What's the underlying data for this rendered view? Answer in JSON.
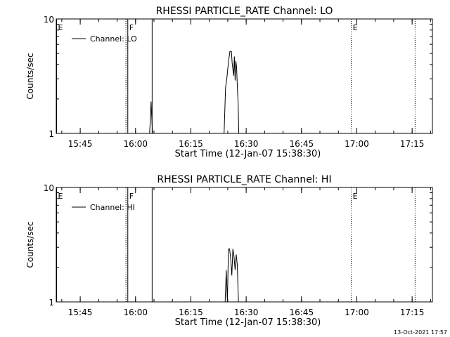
{
  "footer": {
    "timestamp": "13-Oct-2021 17:57"
  },
  "chart_data": [
    {
      "type": "line",
      "title": "RHESSI PARTICLE_RATE Channel: LO",
      "xlabel": "Start Time (12-Jan-07 15:38:30)",
      "ylabel": "Counts/sec",
      "ylog": true,
      "xlim_min": [
        0,
        102
      ],
      "ylim": [
        1,
        10
      ],
      "xticks_min": [
        6.5,
        21.5,
        36.5,
        51.5,
        66.5,
        81.5,
        96.5
      ],
      "xtick_labels": [
        "15:45",
        "16:00",
        "16:15",
        "16:30",
        "16:45",
        "17:00",
        "17:15"
      ],
      "yticks": [
        1,
        10
      ],
      "ytick_labels": [
        "1",
        "10"
      ],
      "legend": {
        "entries": [
          "Channel: LO"
        ],
        "position": "top-left"
      },
      "event_markers": [
        {
          "label": "E",
          "min": 0.1,
          "style": "solid"
        },
        {
          "label": "",
          "min": 18.9,
          "style": "dotted"
        },
        {
          "label": "F",
          "min": 19.4,
          "style": "solid"
        },
        {
          "label": "",
          "min": 26.0,
          "style": "solid"
        },
        {
          "label": "E",
          "min": 80.0,
          "style": "dotted"
        },
        {
          "label": "",
          "min": 97.3,
          "style": "dotted"
        }
      ],
      "series": [
        {
          "name": "Channel: LO",
          "x_min": [
            25.3,
            25.5,
            25.7,
            25.9,
            26.1,
            26.3,
            45.5,
            45.9,
            46.3,
            46.7,
            47.1,
            47.5,
            47.7,
            48.1,
            48.3,
            48.5,
            48.7,
            48.9,
            49.1,
            49.3,
            49.5,
            49.7,
            49.9,
            50.1,
            50.3,
            50.5
          ],
          "y": [
            1.0,
            1.3,
            1.9,
            1.4,
            1.0,
            1.0,
            1.0,
            2.5,
            3.1,
            4.2,
            5.2,
            5.2,
            4.1,
            3.2,
            4.7,
            2.9,
            4.3,
            3.8,
            2.6,
            1.9,
            1.0,
            1.0,
            1.0,
            1.0,
            1.0,
            1.0
          ]
        }
      ]
    },
    {
      "type": "line",
      "title": "RHESSI PARTICLE_RATE Channel: HI",
      "xlabel": "Start Time (12-Jan-07 15:38:30)",
      "ylabel": "Counts/sec",
      "ylog": true,
      "xlim_min": [
        0,
        102
      ],
      "ylim": [
        1,
        10
      ],
      "xticks_min": [
        6.5,
        21.5,
        36.5,
        51.5,
        66.5,
        81.5,
        96.5
      ],
      "xtick_labels": [
        "15:45",
        "16:00",
        "16:15",
        "16:30",
        "16:45",
        "17:00",
        "17:15"
      ],
      "yticks": [
        1,
        10
      ],
      "ytick_labels": [
        "1",
        "10"
      ],
      "legend": {
        "entries": [
          "Channel: HI"
        ],
        "position": "top-left"
      },
      "event_markers": [
        {
          "label": "E",
          "min": 0.1,
          "style": "solid"
        },
        {
          "label": "",
          "min": 18.9,
          "style": "dotted"
        },
        {
          "label": "F",
          "min": 19.4,
          "style": "solid"
        },
        {
          "label": "",
          "min": 26.0,
          "style": "solid"
        },
        {
          "label": "E",
          "min": 80.0,
          "style": "dotted"
        },
        {
          "label": "",
          "min": 97.3,
          "style": "dotted"
        }
      ],
      "series": [
        {
          "name": "Channel: HI",
          "x_min": [
            45.5,
            45.8,
            46.1,
            46.4,
            46.7,
            47.0,
            47.3,
            47.6,
            47.9,
            48.2,
            48.5,
            48.8,
            49.1,
            49.4,
            49.7,
            50.0
          ],
          "y": [
            1.0,
            1.0,
            1.9,
            1.0,
            2.9,
            2.9,
            2.4,
            1.7,
            2.9,
            2.5,
            1.9,
            2.6,
            2.1,
            1.0,
            1.0,
            1.0
          ]
        }
      ]
    }
  ]
}
